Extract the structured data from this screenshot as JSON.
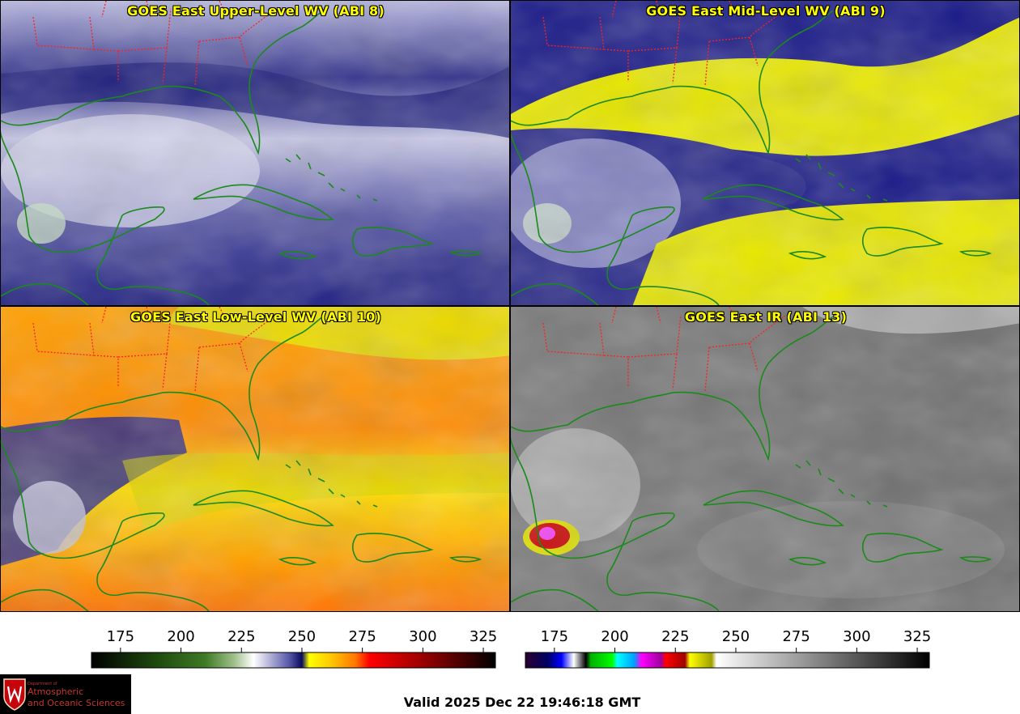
{
  "panels": [
    {
      "title": "GOES East Upper-Level WV (ABI 8)"
    },
    {
      "title": "GOES East Mid-Level WV (ABI 9)"
    },
    {
      "title": "GOES East Low-Level WV (ABI 10)"
    },
    {
      "title": "GOES East IR (ABI 13)"
    }
  ],
  "colorbars": [
    {
      "ticks": [
        "175",
        "200",
        "225",
        "250",
        "275",
        "300",
        "325"
      ],
      "range": [
        163,
        330
      ],
      "stops": [
        {
          "v": 163,
          "c": "#000000"
        },
        {
          "v": 190,
          "c": "#1e4a0e"
        },
        {
          "v": 210,
          "c": "#3e7a26"
        },
        {
          "v": 222,
          "c": "#9fc08a"
        },
        {
          "v": 230,
          "c": "#ffffff"
        },
        {
          "v": 245,
          "c": "#5454a8"
        },
        {
          "v": 250,
          "c": "#0a0a5c"
        },
        {
          "v": 253,
          "c": "#ffff00"
        },
        {
          "v": 262,
          "c": "#ffc800"
        },
        {
          "v": 272,
          "c": "#ff7800"
        },
        {
          "v": 278,
          "c": "#ff0000"
        },
        {
          "v": 300,
          "c": "#9a0000"
        },
        {
          "v": 330,
          "c": "#000000"
        }
      ]
    },
    {
      "ticks": [
        "175",
        "200",
        "225",
        "250",
        "275",
        "300",
        "325"
      ],
      "range": [
        163,
        330
      ],
      "stops": [
        {
          "v": 163,
          "c": "#2a0030"
        },
        {
          "v": 172,
          "c": "#000060"
        },
        {
          "v": 178,
          "c": "#0000ff"
        },
        {
          "v": 183,
          "c": "#ffffff"
        },
        {
          "v": 188,
          "c": "#000000"
        },
        {
          "v": 190,
          "c": "#00b000"
        },
        {
          "v": 199,
          "c": "#00ff00"
        },
        {
          "v": 201,
          "c": "#00ffff"
        },
        {
          "v": 208,
          "c": "#00a0ff"
        },
        {
          "v": 211,
          "c": "#ff00ff"
        },
        {
          "v": 219,
          "c": "#a000a0"
        },
        {
          "v": 221,
          "c": "#ff0000"
        },
        {
          "v": 229,
          "c": "#a00000"
        },
        {
          "v": 231,
          "c": "#ffff00"
        },
        {
          "v": 240,
          "c": "#a0a000"
        },
        {
          "v": 242,
          "c": "#ffffff"
        },
        {
          "v": 330,
          "c": "#000000"
        }
      ]
    }
  ],
  "logo": {
    "dept": "Department of",
    "line1": "Atmospheric",
    "line2": "and Oceanic Sciences"
  },
  "valid": "Valid 2025 Dec 22 19:46:18 GMT"
}
